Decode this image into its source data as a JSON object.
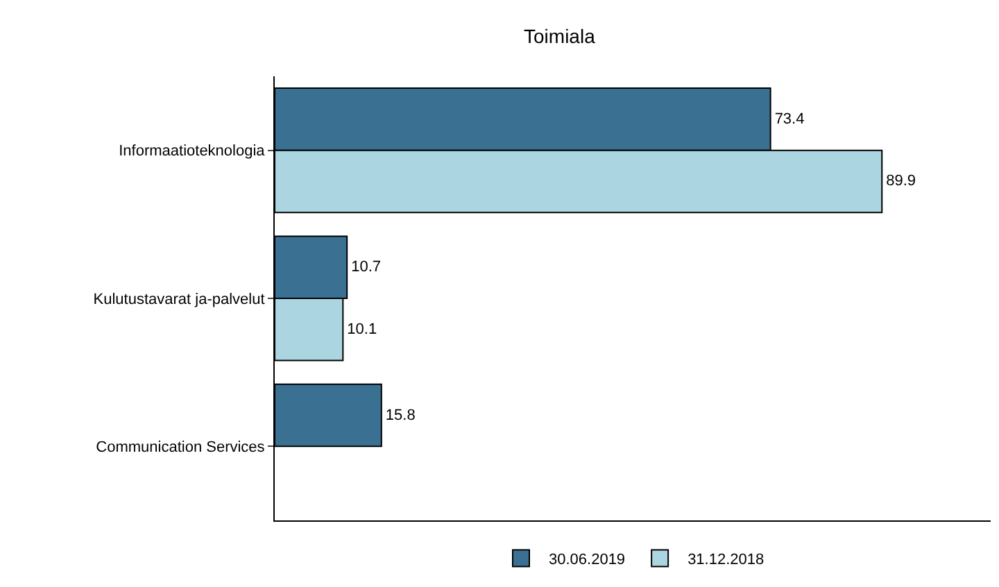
{
  "chart_data": {
    "type": "bar",
    "orientation": "horizontal",
    "title": "Toimiala",
    "categories": [
      "Informaatioteknologia",
      "Kulutustavarat ja-palvelut",
      "Communication Services"
    ],
    "series": [
      {
        "name": "30.06.2019",
        "color": "#3a7193",
        "values": [
          73.4,
          10.7,
          15.8
        ]
      },
      {
        "name": "31.12.2018",
        "color": "#acd5e2",
        "values": [
          89.9,
          10.1,
          null
        ]
      }
    ],
    "xlim": [
      0,
      106
    ],
    "data_labels": true,
    "legend": "bottom",
    "tick_labels": "y"
  }
}
